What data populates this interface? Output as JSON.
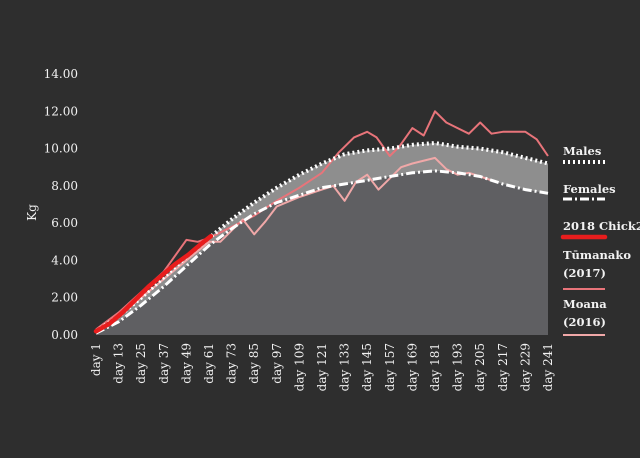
{
  "chart_data": {
    "type": "area",
    "ylabel": "Kg",
    "xlabel": "",
    "title": "",
    "ylim": [
      0,
      14
    ],
    "yticks": [
      "0.00",
      "2.00",
      "4.00",
      "6.00",
      "8.00",
      "10.00",
      "12.00",
      "14.00"
    ],
    "categories": [
      "day 1",
      "day 13",
      "day 25",
      "day 37",
      "day 49",
      "day 61",
      "day 73",
      "day 85",
      "day 97",
      "day 109",
      "day 121",
      "day 133",
      "day 145",
      "day 157",
      "day 169",
      "day 181",
      "day 193",
      "day 205",
      "day 217",
      "day 229",
      "day 241"
    ],
    "legend_position": "right",
    "series": [
      {
        "name": "Males",
        "style": "dotted-white",
        "color": "#ffffff",
        "fill": "#8e8e8e",
        "points": [
          [
            1,
            0.2
          ],
          [
            13,
            1.0
          ],
          [
            25,
            2.0
          ],
          [
            37,
            3.1
          ],
          [
            49,
            4.2
          ],
          [
            61,
            5.2
          ],
          [
            73,
            6.2
          ],
          [
            85,
            7.1
          ],
          [
            97,
            7.9
          ],
          [
            109,
            8.6
          ],
          [
            121,
            9.2
          ],
          [
            133,
            9.7
          ],
          [
            145,
            9.9
          ],
          [
            157,
            10.0
          ],
          [
            169,
            10.2
          ],
          [
            181,
            10.3
          ],
          [
            193,
            10.1
          ],
          [
            205,
            10.0
          ],
          [
            217,
            9.8
          ],
          [
            229,
            9.5
          ],
          [
            241,
            9.2
          ]
        ]
      },
      {
        "name": "Females",
        "style": "dashdot-white",
        "color": "#ffffff",
        "fill": "#5f5f62",
        "points": [
          [
            1,
            0.1
          ],
          [
            13,
            0.7
          ],
          [
            25,
            1.6
          ],
          [
            37,
            2.6
          ],
          [
            49,
            3.7
          ],
          [
            61,
            4.8
          ],
          [
            73,
            5.7
          ],
          [
            85,
            6.5
          ],
          [
            97,
            7.1
          ],
          [
            109,
            7.5
          ],
          [
            121,
            7.9
          ],
          [
            133,
            8.1
          ],
          [
            145,
            8.3
          ],
          [
            157,
            8.5
          ],
          [
            169,
            8.7
          ],
          [
            181,
            8.8
          ],
          [
            193,
            8.7
          ],
          [
            205,
            8.5
          ],
          [
            217,
            8.1
          ],
          [
            229,
            7.8
          ],
          [
            241,
            7.6
          ]
        ]
      },
      {
        "name": "2018 Chick2",
        "style": "solid-thick",
        "color": "#e81d1d",
        "points": [
          [
            1,
            0.2
          ],
          [
            8,
            0.6
          ],
          [
            15,
            1.2
          ],
          [
            22,
            1.9
          ],
          [
            29,
            2.6
          ],
          [
            36,
            3.2
          ],
          [
            43,
            3.8
          ],
          [
            50,
            4.3
          ],
          [
            57,
            4.9
          ],
          [
            62,
            5.3
          ]
        ]
      },
      {
        "name": "Tūmanako\n(2017)",
        "style": "solid",
        "color": "#e8747a",
        "points": [
          [
            1,
            0.3
          ],
          [
            13,
            1.2
          ],
          [
            25,
            2.3
          ],
          [
            37,
            3.4
          ],
          [
            49,
            5.1
          ],
          [
            55,
            5.0
          ],
          [
            61,
            5.2
          ],
          [
            73,
            5.8
          ],
          [
            85,
            6.4
          ],
          [
            97,
            7.2
          ],
          [
            109,
            7.9
          ],
          [
            121,
            8.7
          ],
          [
            130,
            9.8
          ],
          [
            138,
            10.6
          ],
          [
            145,
            10.9
          ],
          [
            150,
            10.6
          ],
          [
            157,
            9.6
          ],
          [
            162,
            10.1
          ],
          [
            169,
            11.1
          ],
          [
            175,
            10.7
          ],
          [
            181,
            12.0
          ],
          [
            187,
            11.4
          ],
          [
            193,
            11.1
          ],
          [
            199,
            10.8
          ],
          [
            205,
            11.4
          ],
          [
            211,
            10.8
          ],
          [
            217,
            10.9
          ],
          [
            229,
            10.9
          ],
          [
            235,
            10.5
          ],
          [
            241,
            9.6
          ]
        ]
      },
      {
        "name": "Moana\n(2016)",
        "style": "solid",
        "color": "#f0a8a8",
        "points": [
          [
            1,
            0.2
          ],
          [
            13,
            1.0
          ],
          [
            25,
            2.0
          ],
          [
            37,
            3.0
          ],
          [
            49,
            4.0
          ],
          [
            61,
            5.0
          ],
          [
            67,
            5.0
          ],
          [
            73,
            5.6
          ],
          [
            79,
            6.2
          ],
          [
            85,
            5.4
          ],
          [
            91,
            6.1
          ],
          [
            97,
            6.9
          ],
          [
            109,
            7.4
          ],
          [
            121,
            7.8
          ],
          [
            127,
            8.0
          ],
          [
            133,
            7.2
          ],
          [
            139,
            8.2
          ],
          [
            145,
            8.6
          ],
          [
            151,
            7.8
          ],
          [
            157,
            8.4
          ],
          [
            163,
            9.0
          ],
          [
            169,
            9.2
          ],
          [
            181,
            9.5
          ],
          [
            187,
            8.9
          ],
          [
            193,
            8.6
          ],
          [
            199,
            8.7
          ],
          [
            205,
            8.5
          ],
          [
            211,
            8.3
          ]
        ]
      }
    ]
  }
}
